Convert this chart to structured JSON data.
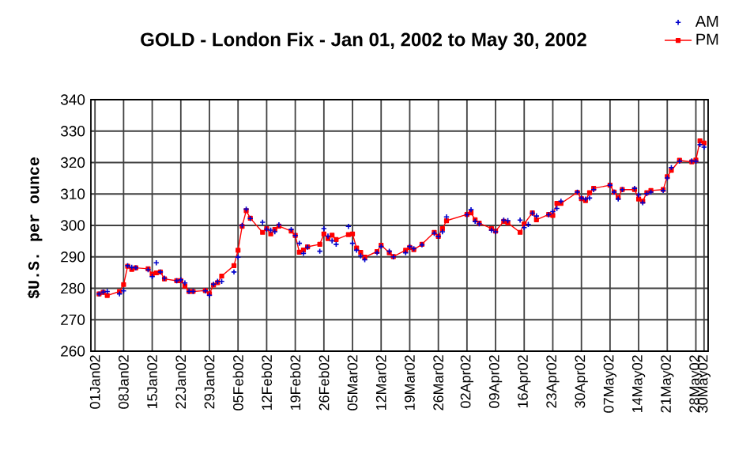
{
  "chart_data": {
    "type": "line",
    "title": "GOLD - London Fix - Jan 01, 2002 to May 30, 2002",
    "ylabel": "$U.S. per ounce",
    "xlim": [
      "2001-12-31",
      "2002-05-31"
    ],
    "ylim": [
      260,
      340
    ],
    "yticks": [
      260,
      270,
      280,
      290,
      300,
      310,
      320,
      330,
      340
    ],
    "xticks": [
      {
        "value": "2002-01-01",
        "label": "01Jan02"
      },
      {
        "value": "2002-01-08",
        "label": "08Jan02"
      },
      {
        "value": "2002-01-15",
        "label": "15Jan02"
      },
      {
        "value": "2002-01-22",
        "label": "22Jan02"
      },
      {
        "value": "2002-01-29",
        "label": "29Jan02"
      },
      {
        "value": "2002-02-05",
        "label": "05Feb02"
      },
      {
        "value": "2002-02-12",
        "label": "12Feb02"
      },
      {
        "value": "2002-02-19",
        "label": "19Feb02"
      },
      {
        "value": "2002-02-26",
        "label": "26Feb02"
      },
      {
        "value": "2002-03-05",
        "label": "05Mar02"
      },
      {
        "value": "2002-03-12",
        "label": "12Mar02"
      },
      {
        "value": "2002-03-19",
        "label": "19Mar02"
      },
      {
        "value": "2002-03-26",
        "label": "26Mar02"
      },
      {
        "value": "2002-04-02",
        "label": "02Apr02"
      },
      {
        "value": "2002-04-09",
        "label": "09Apr02"
      },
      {
        "value": "2002-04-16",
        "label": "16Apr02"
      },
      {
        "value": "2002-04-23",
        "label": "23Apr02"
      },
      {
        "value": "2002-04-30",
        "label": "30Apr02"
      },
      {
        "value": "2002-05-07",
        "label": "07May02"
      },
      {
        "value": "2002-05-14",
        "label": "14May02"
      },
      {
        "value": "2002-05-21",
        "label": "21May02"
      },
      {
        "value": "2002-05-28",
        "label": "28May02"
      },
      {
        "value": "2002-05-30",
        "label": "30May02"
      }
    ],
    "grid": true,
    "legend": "top right",
    "series": [
      {
        "name": "AM",
        "type": "scatter",
        "marker": "cross",
        "color": "#0000cc",
        "x": [
          "2002-01-02",
          "2002-01-03",
          "2002-01-04",
          "2002-01-07",
          "2002-01-08",
          "2002-01-09",
          "2002-01-10",
          "2002-01-11",
          "2002-01-14",
          "2002-01-15",
          "2002-01-16",
          "2002-01-17",
          "2002-01-18",
          "2002-01-21",
          "2002-01-22",
          "2002-01-23",
          "2002-01-24",
          "2002-01-25",
          "2002-01-28",
          "2002-01-29",
          "2002-01-30",
          "2002-01-31",
          "2002-02-01",
          "2002-02-04",
          "2002-02-05",
          "2002-02-06",
          "2002-02-07",
          "2002-02-08",
          "2002-02-11",
          "2002-02-12",
          "2002-02-13",
          "2002-02-14",
          "2002-02-15",
          "2002-02-18",
          "2002-02-19",
          "2002-02-20",
          "2002-02-21",
          "2002-02-22",
          "2002-02-25",
          "2002-02-26",
          "2002-02-27",
          "2002-02-28",
          "2002-03-01",
          "2002-03-04",
          "2002-03-05",
          "2002-03-06",
          "2002-03-07",
          "2002-03-08",
          "2002-03-11",
          "2002-03-12",
          "2002-03-14",
          "2002-03-15",
          "2002-03-18",
          "2002-03-19",
          "2002-03-20",
          "2002-03-22",
          "2002-03-25",
          "2002-03-26",
          "2002-03-27",
          "2002-03-28",
          "2002-04-02",
          "2002-04-03",
          "2002-04-04",
          "2002-04-05",
          "2002-04-08",
          "2002-04-09",
          "2002-04-11",
          "2002-04-12",
          "2002-04-15",
          "2002-04-16",
          "2002-04-17",
          "2002-04-18",
          "2002-04-19",
          "2002-04-22",
          "2002-04-23",
          "2002-04-24",
          "2002-04-25",
          "2002-04-29",
          "2002-04-30",
          "2002-05-01",
          "2002-05-02",
          "2002-05-03",
          "2002-05-07",
          "2002-05-08",
          "2002-05-09",
          "2002-05-10",
          "2002-05-13",
          "2002-05-14",
          "2002-05-15",
          "2002-05-16",
          "2002-05-17",
          "2002-05-20",
          "2002-05-21",
          "2002-05-22",
          "2002-05-24",
          "2002-05-27",
          "2002-05-28",
          "2002-05-29",
          "2002-05-30"
        ],
        "values": [
          278.2,
          278.8,
          279,
          278.2,
          279.2,
          287.2,
          286.7,
          286.5,
          285.9,
          283.7,
          288.1,
          285.2,
          283.2,
          282.4,
          282.7,
          281.7,
          279,
          279,
          279.2,
          277.8,
          281.3,
          282.2,
          282.2,
          285.2,
          289.9,
          300,
          305.2,
          302.2,
          301,
          298.8,
          298.5,
          298,
          300.2,
          298.7,
          296.8,
          294.3,
          291.1,
          293.1,
          291.8,
          299,
          296.6,
          295.1,
          294,
          299.7,
          294.3,
          292.1,
          290.3,
          289.1,
          291.3,
          293.3,
          291.8,
          290,
          291.3,
          293.3,
          292.6,
          293.8,
          297.5,
          296.5,
          298,
          302.7,
          303.4,
          305,
          301.3,
          300.5,
          298.5,
          298,
          301.7,
          301.5,
          301.7,
          299.3,
          300.3,
          303.9,
          303,
          303.4,
          304.4,
          305.4,
          307.7,
          310.6,
          308.7,
          308.4,
          308.7,
          311.4,
          312.8,
          310.6,
          308.4,
          311.4,
          311.8,
          309.7,
          307.2,
          310.1,
          310.6,
          311.1,
          315.1,
          318.4,
          320.4,
          320.5,
          320.4,
          325.7,
          324.9
        ]
      },
      {
        "name": "PM",
        "type": "line",
        "marker": "square",
        "color": "#ff0000",
        "x": [
          "2002-01-02",
          "2002-01-03",
          "2002-01-04",
          "2002-01-07",
          "2002-01-08",
          "2002-01-09",
          "2002-01-10",
          "2002-01-11",
          "2002-01-14",
          "2002-01-15",
          "2002-01-16",
          "2002-01-17",
          "2002-01-18",
          "2002-01-21",
          "2002-01-22",
          "2002-01-23",
          "2002-01-24",
          "2002-01-25",
          "2002-01-28",
          "2002-01-29",
          "2002-01-30",
          "2002-01-31",
          "2002-02-01",
          "2002-02-04",
          "2002-02-05",
          "2002-02-06",
          "2002-02-07",
          "2002-02-08",
          "2002-02-11",
          "2002-02-12",
          "2002-02-13",
          "2002-02-14",
          "2002-02-15",
          "2002-02-18",
          "2002-02-19",
          "2002-02-20",
          "2002-02-21",
          "2002-02-22",
          "2002-02-25",
          "2002-02-26",
          "2002-02-27",
          "2002-02-28",
          "2002-03-01",
          "2002-03-04",
          "2002-03-05",
          "2002-03-06",
          "2002-03-07",
          "2002-03-08",
          "2002-03-11",
          "2002-03-12",
          "2002-03-14",
          "2002-03-15",
          "2002-03-18",
          "2002-03-19",
          "2002-03-20",
          "2002-03-22",
          "2002-03-25",
          "2002-03-26",
          "2002-03-27",
          "2002-03-28",
          "2002-04-02",
          "2002-04-03",
          "2002-04-04",
          "2002-04-05",
          "2002-04-08",
          "2002-04-09",
          "2002-04-11",
          "2002-04-12",
          "2002-04-15",
          "2002-04-16",
          "2002-04-18",
          "2002-04-19",
          "2002-04-22",
          "2002-04-23",
          "2002-04-24",
          "2002-04-25",
          "2002-04-29",
          "2002-04-30",
          "2002-05-01",
          "2002-05-02",
          "2002-05-03",
          "2002-05-07",
          "2002-05-08",
          "2002-05-09",
          "2002-05-10",
          "2002-05-13",
          "2002-05-14",
          "2002-05-15",
          "2002-05-16",
          "2002-05-17",
          "2002-05-20",
          "2002-05-21",
          "2002-05-22",
          "2002-05-24",
          "2002-05-27",
          "2002-05-28",
          "2002-05-29",
          "2002-05-30"
        ],
        "values": [
          278.2,
          278.7,
          277.7,
          279,
          281.2,
          287,
          286,
          286.5,
          286.2,
          284.5,
          284.9,
          285.2,
          283,
          282.4,
          282.4,
          280.7,
          279,
          279,
          279.3,
          278.3,
          281,
          281.8,
          283.9,
          287.2,
          292.1,
          299.7,
          304.7,
          302.3,
          297.8,
          299,
          297.3,
          298.7,
          299.8,
          298.2,
          296.8,
          291.5,
          292.2,
          293.2,
          294,
          297.3,
          295.8,
          296.9,
          295.5,
          297.1,
          297.3,
          292.8,
          291.4,
          289.9,
          291.7,
          293.7,
          291.3,
          290.1,
          292.1,
          293,
          292.3,
          294,
          297.8,
          296.5,
          299,
          301.5,
          303.5,
          304,
          301.8,
          300.7,
          299,
          298.2,
          301.3,
          300.8,
          297.8,
          300.5,
          304,
          301.8,
          303.5,
          303.2,
          307,
          307,
          310.5,
          308.5,
          307.9,
          310.4,
          311.8,
          312.8,
          310.6,
          308.9,
          311.4,
          311.4,
          308.4,
          307.7,
          310.4,
          311.1,
          311.4,
          315.5,
          317.5,
          320.7,
          320.2,
          320.8,
          326.9,
          326.2
        ]
      }
    ]
  }
}
